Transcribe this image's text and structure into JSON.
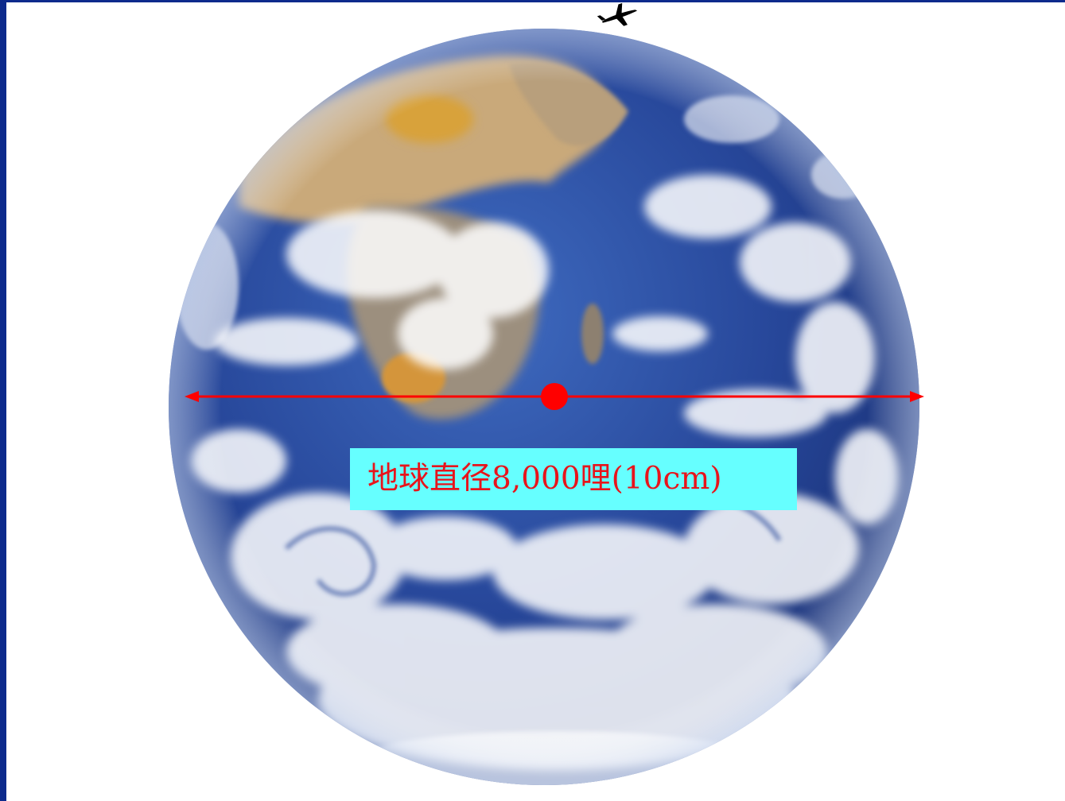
{
  "slide": {
    "label": "地球直径8,000哩(10cm)"
  },
  "icons": {
    "airplane": "airplane-icon",
    "globe": "earth-globe-image"
  },
  "colors": {
    "frame_blue": "#0d2a8c",
    "background": "#ffffff",
    "diameter_line": "#ff0000",
    "label_background": "#66ffff",
    "label_text": "#e8141b"
  }
}
